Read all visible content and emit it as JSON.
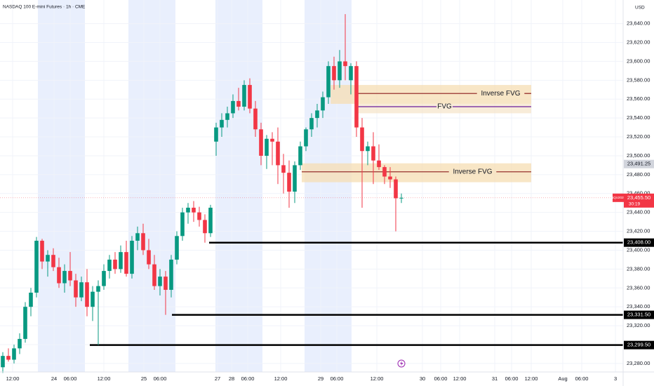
{
  "chart_data": {
    "type": "candlestick",
    "title": "NASDAQ 100 E-mini Futures · 1h · CME",
    "currency": "USD",
    "colors": {
      "up": "#089981",
      "down": "#f23645"
    },
    "x": [
      0,
      1,
      2,
      3,
      4,
      5,
      6,
      7,
      8,
      9,
      10,
      11,
      12,
      13,
      14,
      15,
      16,
      17,
      18,
      19,
      20,
      21,
      22,
      23,
      24,
      25,
      26,
      27,
      28,
      29,
      30,
      31,
      32,
      33,
      34,
      35,
      36,
      37,
      38,
      39,
      40,
      41,
      42,
      43,
      44,
      45,
      46,
      47,
      48,
      49,
      50,
      51,
      52,
      53,
      54,
      55,
      56,
      57,
      58,
      59,
      60,
      61,
      62,
      63,
      64,
      65,
      66,
      67,
      68,
      69,
      70,
      71
    ],
    "open": [
      23276,
      23288,
      23284,
      23296,
      23306,
      23340,
      23355,
      23410,
      23388,
      23395,
      23382,
      23365,
      23378,
      23368,
      23350,
      23366,
      23340,
      23356,
      23362,
      23378,
      23390,
      23380,
      23398,
      23375,
      23410,
      23418,
      23400,
      23385,
      23362,
      23372,
      23358,
      23390,
      23415,
      23440,
      23445,
      23440,
      23432,
      23418,
      23515,
      23530,
      23538,
      23545,
      23558,
      23552,
      23575,
      23550,
      23528,
      23500,
      23518,
      23515,
      23490,
      23482,
      23462,
      23490,
      23510,
      23528,
      23540,
      23548,
      23562,
      23595,
      23580,
      23600,
      23580,
      23595,
      23530,
      23505,
      23510,
      23495,
      23488,
      23478,
      23475,
      23455
    ],
    "high": [
      23292,
      23296,
      23300,
      23312,
      23345,
      23360,
      23414,
      23412,
      23400,
      23402,
      23392,
      23385,
      23398,
      23375,
      23372,
      23380,
      23362,
      23368,
      23385,
      23395,
      23398,
      23405,
      23410,
      23415,
      23425,
      23428,
      23412,
      23395,
      23380,
      23378,
      23395,
      23420,
      23445,
      23450,
      23452,
      23446,
      23438,
      23448,
      23535,
      23545,
      23552,
      23565,
      23572,
      23580,
      23582,
      23558,
      23535,
      23522,
      23525,
      23530,
      23502,
      23495,
      23494,
      23515,
      23530,
      23545,
      23555,
      23568,
      23600,
      23605,
      23612,
      23650,
      23598,
      23600,
      23540,
      23515,
      23525,
      23512,
      23490,
      23488,
      23478,
      23460
    ],
    "low": [
      23270,
      23282,
      23280,
      23290,
      23302,
      23330,
      23350,
      23380,
      23372,
      23378,
      23360,
      23355,
      23362,
      23340,
      23346,
      23330,
      23325,
      23299.5,
      23358,
      23370,
      23375,
      23376,
      23372,
      23370,
      23400,
      23395,
      23380,
      23358,
      23352,
      23331.5,
      23350,
      23385,
      23410,
      23428,
      23430,
      23425,
      23408,
      23414,
      23500,
      23520,
      23530,
      23540,
      23548,
      23548,
      23545,
      23520,
      23490,
      23486,
      23490,
      23470,
      23460,
      23445,
      23450,
      23485,
      23505,
      23520,
      23530,
      23540,
      23555,
      23570,
      23572,
      23580,
      23565,
      23520,
      23445,
      23490,
      23470,
      23485,
      23470,
      23466,
      23420,
      23450
    ],
    "close": [
      23288,
      23284,
      23296,
      23306,
      23340,
      23355,
      23410,
      23388,
      23395,
      23382,
      23365,
      23378,
      23368,
      23350,
      23366,
      23340,
      23356,
      23362,
      23378,
      23390,
      23380,
      23398,
      23375,
      23410,
      23418,
      23400,
      23385,
      23362,
      23372,
      23358,
      23390,
      23415,
      23440,
      23445,
      23440,
      23432,
      23418,
      23445,
      23530,
      23538,
      23545,
      23558,
      23552,
      23575,
      23550,
      23528,
      23500,
      23518,
      23515,
      23490,
      23482,
      23462,
      23490,
      23510,
      23528,
      23540,
      23548,
      23562,
      23595,
      23580,
      23600,
      23595,
      23595,
      23530,
      23505,
      23510,
      23495,
      23488,
      23478,
      23475,
      23455,
      23455.5
    ],
    "xlim": [
      -0.5,
      110.5
    ],
    "xticks": [
      {
        "value": 1.75,
        "label": "12:00"
      },
      {
        "value": 9.13,
        "label": "24"
      },
      {
        "value": 12,
        "label": "06:00"
      },
      {
        "value": 18,
        "label": "12:00"
      },
      {
        "value": 25.13,
        "label": "25"
      },
      {
        "value": 28,
        "label": "06:00"
      },
      {
        "value": 38.25,
        "label": "27"
      },
      {
        "value": 40.75,
        "label": "28"
      },
      {
        "value": 43.63,
        "label": "06:00"
      },
      {
        "value": 49.5,
        "label": "12:00"
      },
      {
        "value": 56.63,
        "label": "29"
      },
      {
        "value": 59.5,
        "label": "06:00"
      },
      {
        "value": 66.63,
        "label": "12:00"
      },
      {
        "value": 74.75,
        "label": "30"
      },
      {
        "value": 78,
        "label": "06:00"
      },
      {
        "value": 81.38,
        "label": "12:00"
      },
      {
        "value": 87.63,
        "label": "31"
      },
      {
        "value": 90.63,
        "label": "06:00"
      },
      {
        "value": 94.13,
        "label": "12:00"
      },
      {
        "value": 99.75,
        "label": "Aug"
      },
      {
        "value": 103.13,
        "label": "06:00"
      },
      {
        "value": 109.13,
        "label": "3"
      }
    ],
    "ylim": [
      23271,
      23665
    ],
    "yticks": [
      {
        "value": 23280,
        "label": "23,280.00"
      },
      {
        "value": 23300,
        "label": "23,300.00"
      },
      {
        "value": 23320,
        "label": "23,320.00"
      },
      {
        "value": 23340,
        "label": "23,340.00"
      },
      {
        "value": 23360,
        "label": "23,360.00"
      },
      {
        "value": 23380,
        "label": "23,380.00"
      },
      {
        "value": 23400,
        "label": "23,400.00"
      },
      {
        "value": 23420,
        "label": "23,420.00"
      },
      {
        "value": 23440,
        "label": "23,440.00"
      },
      {
        "value": 23460,
        "label": "23,460.00"
      },
      {
        "value": 23480,
        "label": "23,480.00"
      },
      {
        "value": 23500,
        "label": "23,500.00"
      },
      {
        "value": 23520,
        "label": "23,520.00"
      },
      {
        "value": 23540,
        "label": "23,540.00"
      },
      {
        "value": 23560,
        "label": "23,560.00"
      },
      {
        "value": 23580,
        "label": "23,580.00"
      },
      {
        "value": 23600,
        "label": "23,600.00"
      },
      {
        "value": 23620,
        "label": "23,620.00"
      },
      {
        "value": 23640,
        "label": "23,640.00"
      }
    ],
    "zones": [
      {
        "label": "Inverse FVG",
        "y": [
          23555,
          23575
        ],
        "line": 23566,
        "x": [
          58.4,
          94.13
        ],
        "line_start": 63.25,
        "fill": "#f5deb3",
        "color": "#8b1a1a"
      },
      {
        "label": "FVG",
        "y": [
          23545,
          23555
        ],
        "line": 23552,
        "x": [
          63.25,
          94.13
        ],
        "line_start": 63.25,
        "fill": "#f5e6cc",
        "color": "#6a1b9a"
      },
      {
        "label": "Inverse FVG",
        "y": [
          23472,
          23492
        ],
        "line": 23483,
        "x": [
          53.25,
          94.13
        ],
        "line_start": 53.25,
        "fill": "#f5deb3",
        "color": "#8b1a1a"
      }
    ],
    "levels": [
      {
        "value": 23408,
        "label": "23,408.00",
        "x_start": 36.75
      },
      {
        "value": 23331.5,
        "label": "23,331.50",
        "x_start": 30.13
      },
      {
        "value": 23299.5,
        "label": "23,299.50",
        "x_start": 15.5
      }
    ],
    "marked_price": {
      "value": 23491.25,
      "label": "23,491.25"
    },
    "last_price": {
      "symbol": "NQU2025",
      "value": 23455.5,
      "label": "23,455.50",
      "countdown": "30:19"
    }
  }
}
